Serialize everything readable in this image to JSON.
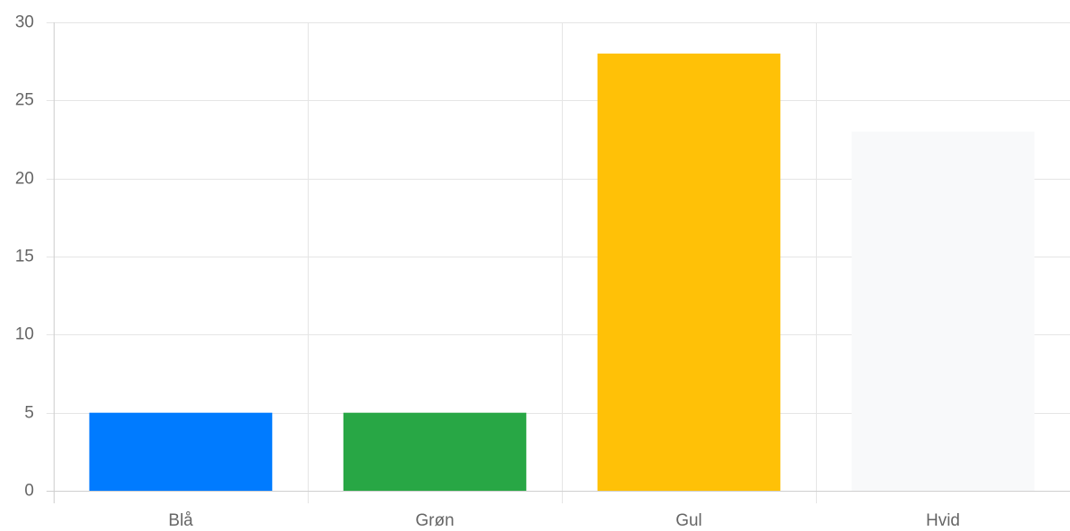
{
  "chart_data": {
    "type": "bar",
    "categories": [
      "Blå",
      "Grøn",
      "Gul",
      "Hvid"
    ],
    "values": [
      5,
      5,
      28,
      23
    ],
    "colors": [
      "#007bff",
      "#28a745",
      "#ffc107",
      "#f8f9fa"
    ],
    "title": "",
    "xlabel": "",
    "ylabel": "",
    "ylim": [
      0,
      30
    ],
    "yticks": [
      0,
      5,
      10,
      15,
      20,
      25,
      30
    ],
    "grid": true,
    "legend": "none"
  }
}
